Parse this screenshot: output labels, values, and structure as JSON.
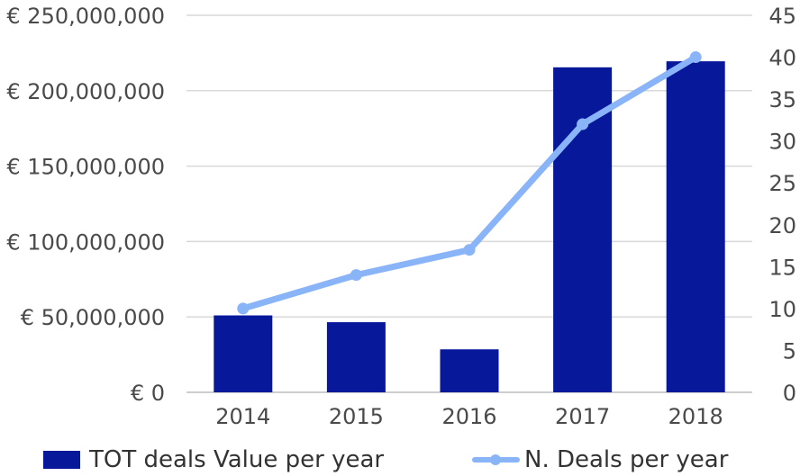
{
  "chart_data": {
    "type": "bar",
    "categories": [
      "2014",
      "2015",
      "2016",
      "2017",
      "2018"
    ],
    "series": [
      {
        "name": "TOT deals Value per year",
        "type": "bar",
        "axis": "left",
        "values": [
          51000000,
          46500000,
          28500000,
          215500000,
          219500000
        ],
        "color": "#07189b"
      },
      {
        "name": "N. Deals per year",
        "type": "line",
        "axis": "right",
        "values": [
          10,
          14,
          17,
          32,
          40
        ],
        "color": "#8ab4f8"
      }
    ],
    "y_left": {
      "ylim": [
        0,
        250000000
      ],
      "tick_labels": [
        "€ 0",
        "€ 50,000,000",
        "€ 100,000,000",
        "€ 150,000,000",
        "€ 200,000,000",
        "€ 250,000,000"
      ]
    },
    "y_right": {
      "ylim": [
        0,
        45
      ],
      "tick_labels": [
        "0",
        "5",
        "10",
        "15",
        "20",
        "25",
        "30",
        "35",
        "40",
        "45"
      ]
    },
    "grid": true,
    "legend_position": "bottom"
  }
}
